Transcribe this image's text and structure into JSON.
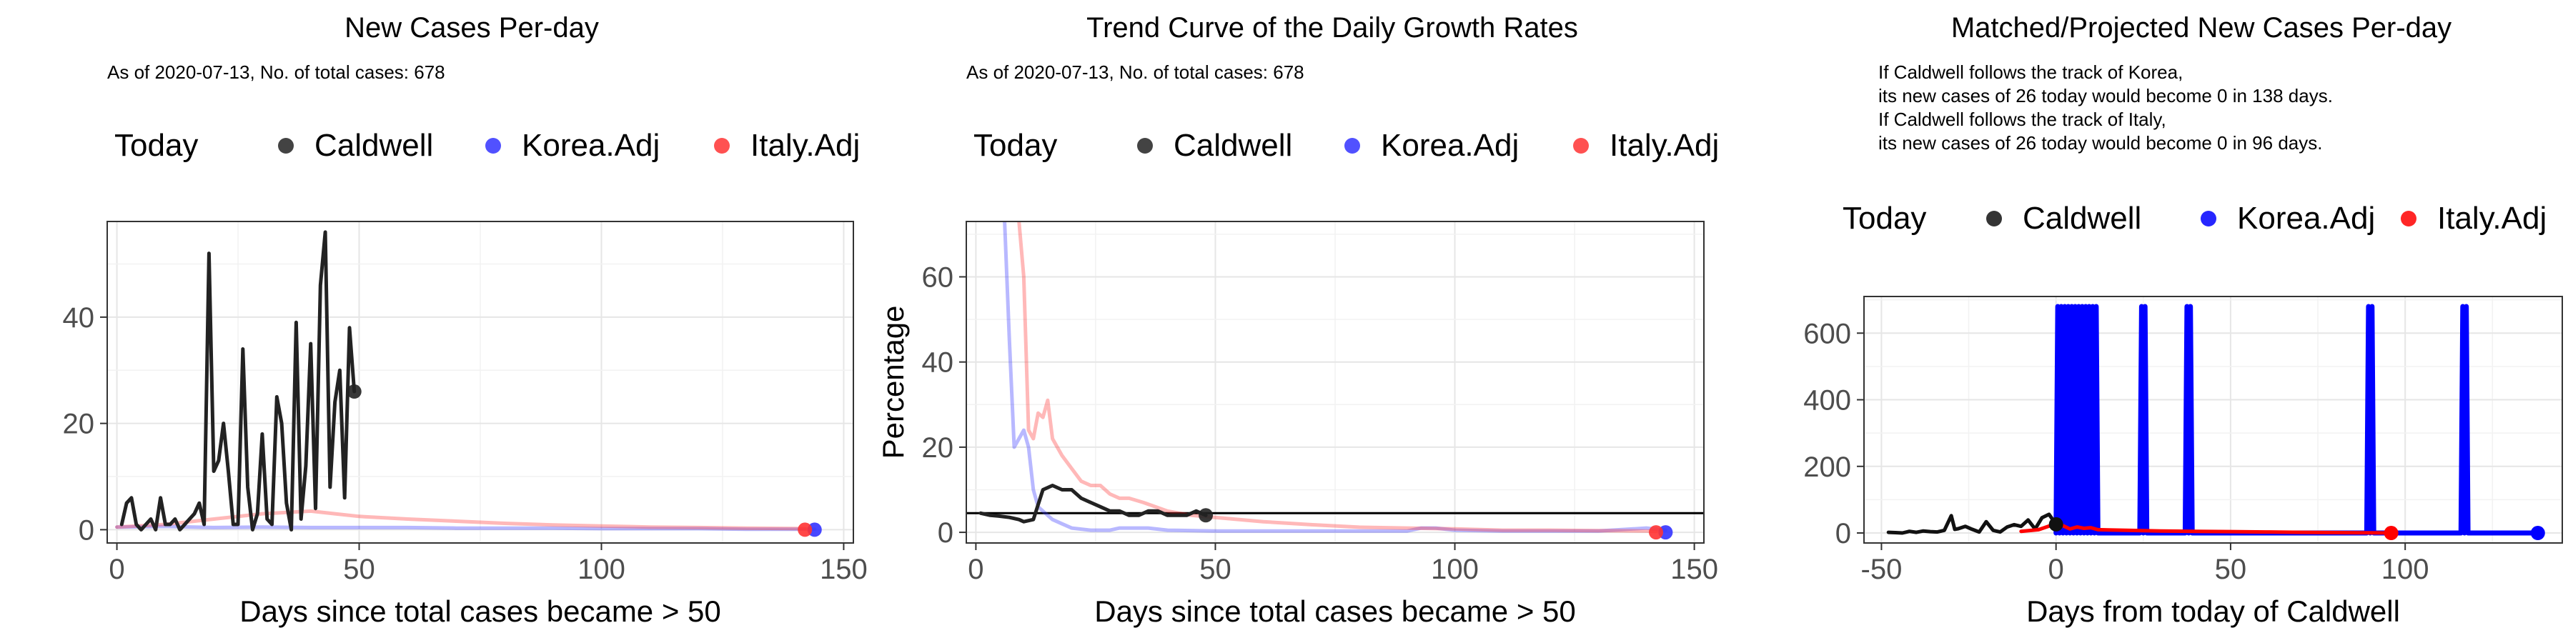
{
  "chart_data": [
    {
      "type": "line",
      "title": "New Cases Per-day",
      "subtitle": "As of 2020-07-13, No. of total cases: 678",
      "legend": {
        "title": "Today",
        "placement": "top",
        "entries": [
          "Caldwell",
          "Korea.Adj",
          "Italy.Adj"
        ]
      },
      "xlabel": "Days since total cases became > 50",
      "ylabel": "",
      "xlim": [
        -2,
        152
      ],
      "ylim": [
        -2.5,
        58
      ],
      "xticks": [
        0,
        50,
        100,
        150
      ],
      "yticks": [
        0,
        20,
        40
      ],
      "grid": true,
      "series": [
        {
          "name": "Caldwell",
          "color": "#222222",
          "x": [
            1,
            2,
            3,
            4,
            5,
            6,
            7,
            8,
            9,
            10,
            11,
            12,
            13,
            14,
            15,
            16,
            17,
            18,
            19,
            20,
            21,
            22,
            23,
            24,
            25,
            26,
            27,
            28,
            29,
            30,
            31,
            32,
            33,
            34,
            35,
            36,
            37,
            38,
            39,
            40,
            41,
            42,
            43,
            44,
            45,
            46,
            47,
            48,
            49
          ],
          "y": [
            1,
            5,
            6,
            1,
            0,
            1,
            2,
            0,
            6,
            1,
            1,
            2,
            0,
            1,
            2,
            3,
            5,
            1,
            52,
            11,
            13,
            20,
            11,
            1,
            1,
            34,
            8,
            0,
            3,
            18,
            2,
            1,
            25,
            20,
            5,
            0,
            39,
            2,
            12,
            35,
            4,
            46,
            56,
            8,
            24,
            30,
            6,
            38,
            26
          ]
        },
        {
          "name": "Korea.Adj",
          "color": "#3333ff",
          "x": [
            0,
            10,
            20,
            30,
            40,
            50,
            60,
            70,
            80,
            90,
            100,
            110,
            120,
            130,
            140,
            144
          ],
          "y": [
            0.5,
            0.6,
            0.4,
            0.5,
            0.4,
            0.4,
            0.4,
            0.3,
            0.3,
            0.3,
            0.2,
            0.2,
            0.2,
            0.1,
            0.1,
            0.1
          ]
        },
        {
          "name": "Italy.Adj",
          "color": "#ff3333",
          "x": [
            0,
            10,
            20,
            30,
            40,
            45,
            50,
            60,
            70,
            80,
            90,
            100,
            110,
            120,
            130,
            142
          ],
          "y": [
            0.5,
            1,
            2,
            3,
            3.5,
            3,
            2.5,
            2,
            1.6,
            1.2,
            0.9,
            0.7,
            0.5,
            0.4,
            0.3,
            0.2
          ]
        }
      ],
      "today_points": [
        {
          "series": "Caldwell",
          "x": 49,
          "y": 26
        },
        {
          "series": "Korea.Adj",
          "x": 144,
          "y": 0
        },
        {
          "series": "Italy.Adj",
          "x": 142,
          "y": 0
        }
      ]
    },
    {
      "type": "line",
      "title": "Trend Curve of the Daily Growth Rates",
      "subtitle": "As of 2020-07-13, No. of total cases: 678",
      "legend": {
        "title": "Today",
        "placement": "top",
        "entries": [
          "Caldwell",
          "Korea.Adj",
          "Italy.Adj"
        ]
      },
      "xlabel": "Days since total cases became > 50",
      "ylabel": "Percentage",
      "xlim": [
        -2,
        152
      ],
      "ylim": [
        -2.5,
        73
      ],
      "xticks": [
        0,
        50,
        100,
        150
      ],
      "yticks": [
        0,
        20,
        40,
        60
      ],
      "grid": true,
      "hline": 4.5,
      "series": [
        {
          "name": "Caldwell",
          "color": "#222222",
          "x": [
            1,
            3,
            5,
            7,
            9,
            10,
            12,
            14,
            16,
            18,
            20,
            22,
            24,
            26,
            28,
            30,
            32,
            34,
            36,
            38,
            40,
            42,
            44,
            46,
            48
          ],
          "y": [
            4.5,
            4,
            3.8,
            3.5,
            3,
            2.5,
            3,
            10,
            11,
            10,
            10,
            8,
            7,
            6,
            5,
            5,
            4,
            4,
            5,
            5,
            4,
            4,
            4,
            5,
            4
          ]
        },
        {
          "name": "Korea.Adj",
          "color": "#3333ff",
          "x": [
            6,
            7,
            8,
            9,
            10,
            11,
            12,
            13,
            14,
            15,
            16,
            18,
            20,
            24,
            28,
            30,
            32,
            36,
            40,
            50,
            60,
            70,
            80,
            90,
            93,
            96,
            100,
            110,
            120,
            130,
            140,
            144
          ],
          "y": [
            73,
            45,
            20,
            22,
            24,
            20,
            10,
            6,
            5,
            4,
            3,
            2,
            1,
            0.5,
            0.5,
            1,
            1,
            1,
            0.5,
            0.3,
            0.3,
            0.3,
            0.3,
            0.3,
            1,
            1,
            0.5,
            0.3,
            0.3,
            0.3,
            1,
            0.5
          ]
        },
        {
          "name": "Italy.Adj",
          "color": "#ff3333",
          "x": [
            9,
            10,
            11,
            12,
            13,
            14,
            15,
            16,
            17,
            18,
            20,
            22,
            24,
            26,
            28,
            30,
            32,
            35,
            40,
            45,
            50,
            55,
            60,
            70,
            80,
            90,
            100,
            110,
            120,
            130,
            140,
            142
          ],
          "y": [
            73,
            60,
            24,
            22,
            28,
            27,
            31,
            22,
            20,
            18,
            15,
            12,
            11,
            11,
            9,
            8,
            8,
            7,
            5,
            4,
            3.5,
            3,
            2.5,
            1.8,
            1.2,
            1,
            0.8,
            0.5,
            0.5,
            0.4,
            0.3,
            0.2
          ]
        }
      ],
      "today_points": [
        {
          "series": "Caldwell",
          "x": 48,
          "y": 4
        },
        {
          "series": "Korea.Adj",
          "x": 144,
          "y": 0
        },
        {
          "series": "Italy.Adj",
          "x": 142,
          "y": 0
        }
      ]
    },
    {
      "type": "line",
      "title": "Matched/Projected New Cases Per-day",
      "notes": [
        "If Caldwell follows the track of Korea,",
        "its new cases of 26 today would become 0 in 138 days.",
        "If Caldwell follows the track of Italy,",
        "its new cases of 26 today would become 0 in 96 days."
      ],
      "legend": {
        "title": "Today",
        "placement": "top",
        "entries": [
          "Caldwell",
          "Korea.Adj",
          "Italy.Adj"
        ]
      },
      "xlabel": "Days from today of Caldwell",
      "ylabel": "",
      "xlim": [
        -55,
        145
      ],
      "ylim": [
        -30,
        710
      ],
      "xticks": [
        -50,
        0,
        50,
        100
      ],
      "yticks": [
        0,
        200,
        400,
        600
      ],
      "grid": true,
      "series": [
        {
          "name": "Caldwell",
          "color": "#111111",
          "x": [
            -48,
            -46,
            -44,
            -42,
            -40,
            -38,
            -36,
            -34,
            -32,
            -30,
            -29,
            -28,
            -26,
            -24,
            -22,
            -20,
            -18,
            -16,
            -14,
            -12,
            -10,
            -8,
            -6,
            -4,
            -2,
            0
          ],
          "y": [
            2,
            1,
            0,
            5,
            2,
            6,
            4,
            3,
            8,
            52,
            11,
            13,
            20,
            11,
            3,
            34,
            8,
            3,
            18,
            25,
            20,
            39,
            12,
            46,
            56,
            26
          ]
        },
        {
          "name": "Korea.Adj",
          "color": "#0000ff",
          "x": [
            0,
            0.5,
            1,
            1.5,
            2,
            2.5,
            3,
            3.5,
            4,
            4.5,
            5,
            5.5,
            6,
            6.5,
            7,
            7.5,
            8,
            8.5,
            9,
            9.5,
            10,
            10.5,
            11,
            11.5,
            12,
            24,
            24.5,
            25,
            25.5,
            26,
            37,
            37.5,
            38,
            38.5,
            39,
            89,
            89.5,
            90,
            90.5,
            91,
            116,
            116.5,
            117,
            117.5,
            118,
            138
          ],
          "y": [
            0,
            680,
            0,
            680,
            0,
            680,
            0,
            680,
            0,
            680,
            0,
            680,
            0,
            680,
            0,
            680,
            0,
            680,
            0,
            680,
            0,
            680,
            0,
            680,
            0,
            0,
            680,
            0,
            680,
            0,
            0,
            680,
            0,
            680,
            0,
            0,
            680,
            0,
            680,
            0,
            0,
            680,
            0,
            680,
            0,
            0
          ]
        },
        {
          "name": "Italy.Adj",
          "color": "#ff0000",
          "x": [
            -10,
            -5,
            0,
            2,
            4,
            6,
            8,
            10,
            12,
            15,
            20,
            30,
            40,
            50,
            60,
            70,
            80,
            90,
            96
          ],
          "y": [
            5,
            10,
            28,
            22,
            12,
            18,
            14,
            16,
            10,
            9,
            8,
            6,
            5,
            4,
            3,
            2,
            1,
            0.5,
            0
          ]
        }
      ],
      "today_points": [
        {
          "series": "Caldwell",
          "x": 0,
          "y": 26
        },
        {
          "series": "Korea.Adj",
          "x": 138,
          "y": 0
        },
        {
          "series": "Italy.Adj",
          "x": 96,
          "y": 0
        }
      ]
    }
  ]
}
